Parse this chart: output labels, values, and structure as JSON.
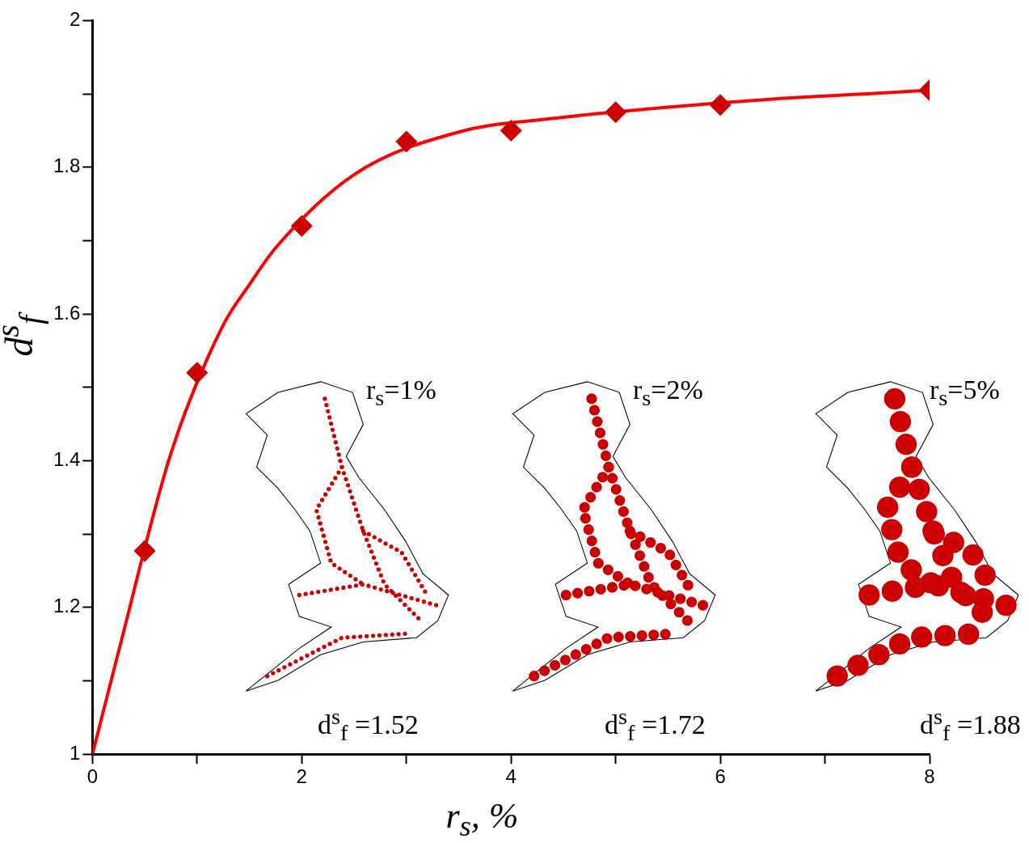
{
  "chart_data": {
    "type": "scatter",
    "xlabel": "r$_{s}$, %",
    "ylabel": "d$^{s}$$_{f}$",
    "xlim": [
      0,
      8
    ],
    "ylim": [
      1,
      2
    ],
    "xticks": [
      0,
      {
        "value": 1,
        "label": null
      },
      2,
      {
        "value": 3,
        "label": null
      },
      4,
      {
        "value": 5,
        "label": null
      },
      6,
      {
        "value": 7,
        "label": null
      },
      8
    ],
    "yticks": [
      1,
      {
        "value": 1.1,
        "label": null
      },
      1.2,
      {
        "value": 1.3,
        "label": null
      },
      1.4,
      {
        "value": 1.5,
        "label": null
      },
      1.6,
      {
        "value": 1.7,
        "label": null
      },
      1.8,
      {
        "value": 1.9,
        "label": null
      },
      2
    ],
    "grid": false,
    "legend": false,
    "series": [
      {
        "type": "line",
        "color": "#ff0000",
        "marker": "none",
        "line_style": "solid",
        "x": [
          0,
          0.25,
          0.75,
          1.25,
          1.5,
          1.75,
          2.5,
          3.5,
          4.5,
          5.5,
          6.5,
          7.5,
          8
        ],
        "values": [
          1,
          1.14,
          1.41,
          1.585,
          1.64,
          1.69,
          1.79,
          1.848,
          1.868,
          1.882,
          1.893,
          1.901,
          1.905
        ]
      },
      {
        "type": "scatter",
        "color": "#cc0000",
        "marker": "diamond",
        "x": [
          0.5,
          1,
          2,
          3,
          4,
          5,
          6,
          8
        ],
        "values": [
          1.277,
          1.52,
          1.72,
          1.835,
          1.85,
          1.875,
          1.885,
          1.905
        ]
      }
    ],
    "annotations": [
      "r$_{s}$=1%",
      "r$_{s}$=2%",
      "r$_{s}$=5%",
      "d$^{s}$$_{f}$ =1.52",
      "d$^{s}$$_{f}$ =1.72",
      "d$^{s}$$_{f}$ =1.88"
    ]
  }
}
